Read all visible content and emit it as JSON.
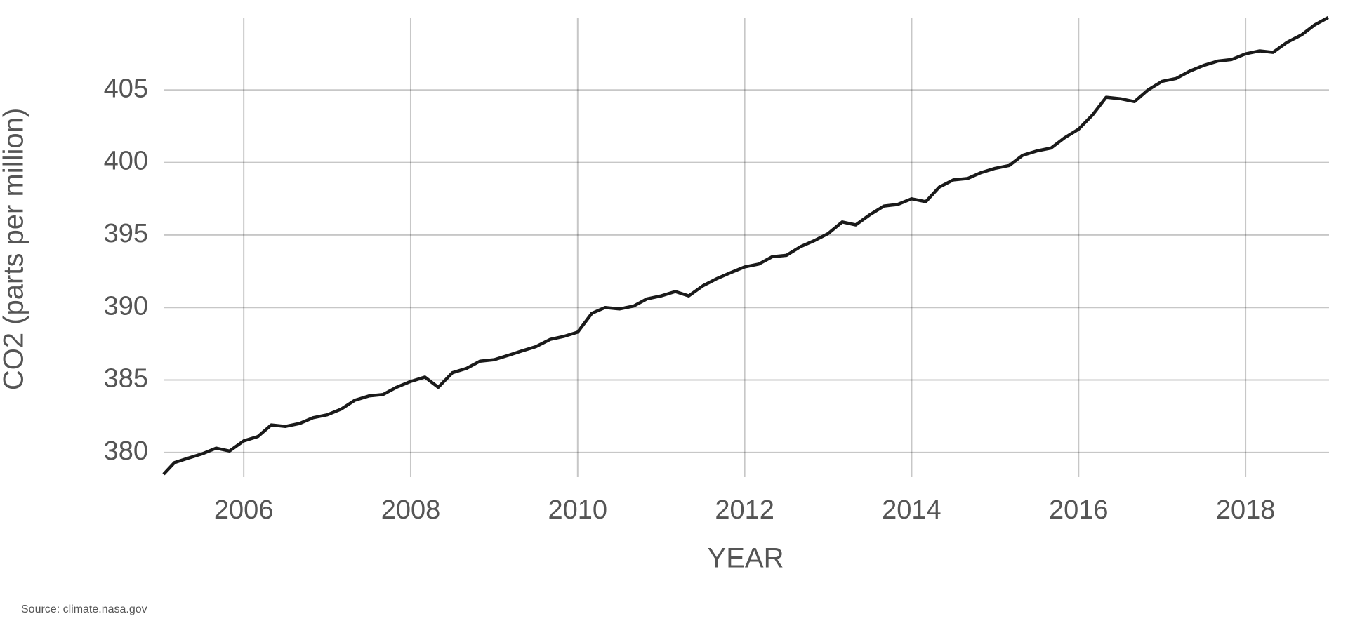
{
  "chart_data": {
    "type": "line",
    "x_label": "YEAR",
    "y_label": "CO2 (parts per million)",
    "source": "Source: climate.nasa.gov",
    "xlim": [
      2005.04,
      2019.0
    ],
    "ylim": [
      378.3,
      410.0
    ],
    "xticks": [
      2006,
      2008,
      2010,
      2012,
      2014,
      2016,
      2018
    ],
    "yticks": [
      380,
      385,
      390,
      395,
      400,
      405
    ],
    "grid": true,
    "x": [
      2005.04,
      2005.17,
      2005.33,
      2005.5,
      2005.67,
      2005.83,
      2006.0,
      2006.17,
      2006.33,
      2006.5,
      2006.67,
      2006.83,
      2007.0,
      2007.17,
      2007.33,
      2007.5,
      2007.67,
      2007.83,
      2008.0,
      2008.17,
      2008.33,
      2008.5,
      2008.67,
      2008.83,
      2009.0,
      2009.17,
      2009.33,
      2009.5,
      2009.67,
      2009.83,
      2010.0,
      2010.17,
      2010.33,
      2010.5,
      2010.67,
      2010.83,
      2011.0,
      2011.17,
      2011.33,
      2011.5,
      2011.67,
      2011.83,
      2012.0,
      2012.17,
      2012.33,
      2012.5,
      2012.67,
      2012.83,
      2013.0,
      2013.17,
      2013.33,
      2013.5,
      2013.67,
      2013.83,
      2014.0,
      2014.17,
      2014.33,
      2014.5,
      2014.67,
      2014.83,
      2015.0,
      2015.17,
      2015.33,
      2015.5,
      2015.67,
      2015.83,
      2016.0,
      2016.17,
      2016.33,
      2016.5,
      2016.67,
      2016.83,
      2017.0,
      2017.17,
      2017.33,
      2017.5,
      2017.67,
      2017.83,
      2018.0,
      2018.17,
      2018.33,
      2018.5,
      2018.67,
      2018.83,
      2018.99
    ],
    "series": [
      {
        "name": "CO2",
        "color": "#1a1a1a",
        "values": [
          378.5,
          379.3,
          379.6,
          379.9,
          380.3,
          380.1,
          380.8,
          381.1,
          381.9,
          381.8,
          382.0,
          382.4,
          382.6,
          383.0,
          383.6,
          383.9,
          384.0,
          384.5,
          384.9,
          385.2,
          384.5,
          385.5,
          385.8,
          386.3,
          386.4,
          386.7,
          387.0,
          387.3,
          387.8,
          388.0,
          388.3,
          389.6,
          390.0,
          389.9,
          390.1,
          390.6,
          390.8,
          391.1,
          390.8,
          391.5,
          392.0,
          392.4,
          392.8,
          393.0,
          393.5,
          393.6,
          394.2,
          394.6,
          395.1,
          395.9,
          395.7,
          396.4,
          397.0,
          397.1,
          397.5,
          397.3,
          398.3,
          398.8,
          398.9,
          399.3,
          399.6,
          399.8,
          400.5,
          400.8,
          401.0,
          401.7,
          402.3,
          403.3,
          404.5,
          404.4,
          404.2,
          405.0,
          405.6,
          405.8,
          406.3,
          406.7,
          407.0,
          407.1,
          407.5,
          407.7,
          407.6,
          408.3,
          408.8,
          409.5,
          410.0
        ]
      }
    ]
  }
}
